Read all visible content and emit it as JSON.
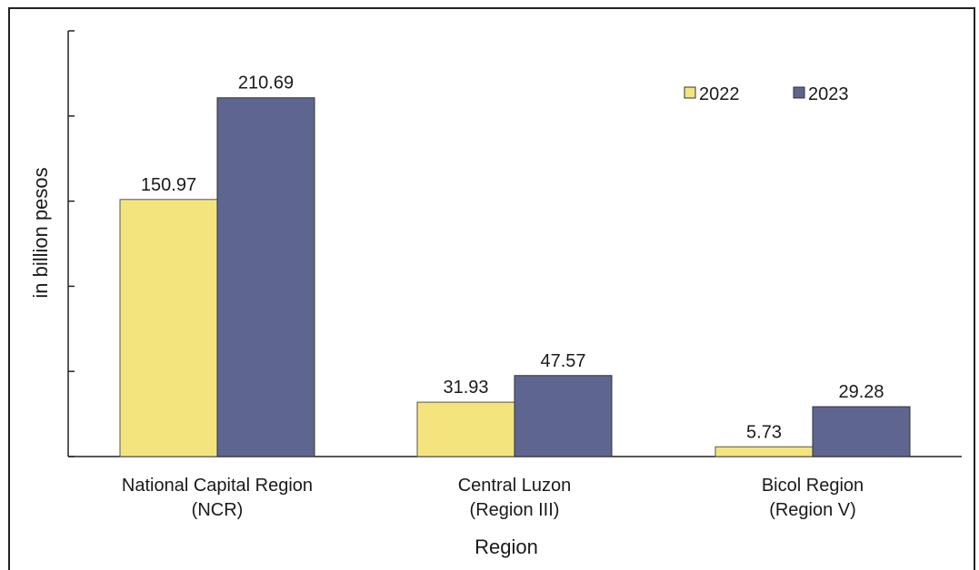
{
  "chart_data": {
    "type": "bar",
    "title": "",
    "xlabel": "Region",
    "ylabel": "in billion pesos",
    "ylim": [
      0,
      250
    ],
    "y_ticks": [
      0,
      50,
      100,
      150,
      200,
      250
    ],
    "categories": [
      [
        "National Capital Region",
        "(NCR)"
      ],
      [
        "Central Luzon",
        "(Region III)"
      ],
      [
        "Bicol Region",
        "(Region V)"
      ]
    ],
    "series": [
      {
        "name": "2022",
        "color": "#f3e47e",
        "values": [
          150.97,
          31.93,
          5.73
        ],
        "labels": [
          "150.97",
          "31.93",
          "5.73"
        ]
      },
      {
        "name": "2023",
        "color": "#5e6690",
        "values": [
          210.69,
          47.57,
          29.28
        ],
        "labels": [
          "210.69",
          "47.57",
          "29.28"
        ]
      }
    ],
    "legend_position": "top-right",
    "grid": false
  }
}
